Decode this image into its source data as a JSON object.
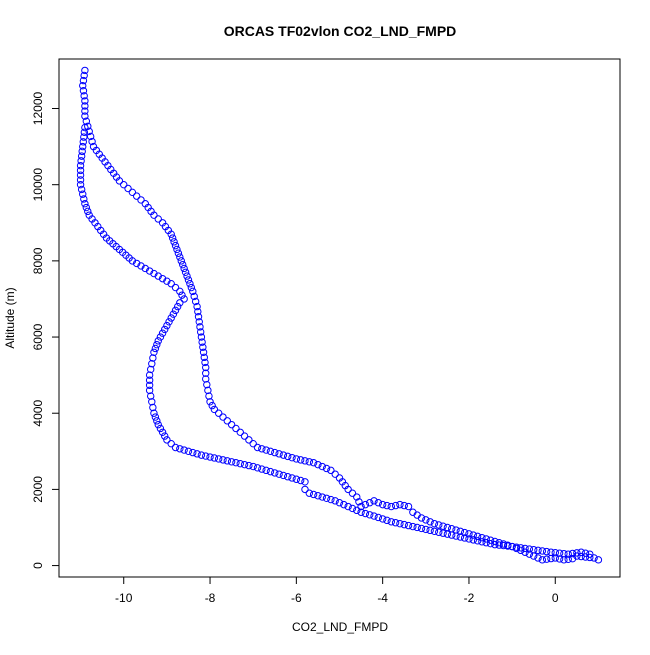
{
  "chart_data": {
    "type": "scatter",
    "title": "ORCAS TF02vlon CO2_LND_FMPD",
    "xlabel": "CO2_LND_FMPD",
    "ylabel": "Altitude (m)",
    "xlim": [
      -11.5,
      1.5
    ],
    "ylim": [
      -300,
      13300
    ],
    "xticks": [
      -10,
      -8,
      -6,
      -4,
      -2,
      0
    ],
    "yticks": [
      0,
      2000,
      4000,
      6000,
      8000,
      10000,
      12000
    ],
    "grid": false,
    "marker": "open-circle",
    "point_color": "#0000ff",
    "series": [
      {
        "name": "",
        "x": [
          1.0,
          0.9,
          0.5,
          0.4,
          0.2,
          0.0,
          -0.3,
          -0.5,
          -0.6,
          -0.8,
          -1.0,
          -1.3,
          -1.6,
          -1.9,
          -2.2,
          -2.5,
          -2.8,
          -3.1,
          -3.3,
          -3.4,
          -3.6,
          -3.8,
          -4.0,
          -4.2,
          -4.4,
          -4.5,
          -4.6,
          -4.8,
          -5.0,
          -5.2,
          -5.4,
          -5.6,
          -5.8,
          -6.0,
          -6.3,
          -6.6,
          -6.9,
          -7.1,
          -7.3,
          -7.5,
          -7.7,
          -7.9,
          -8.0,
          -8.05,
          -8.1,
          -8.1,
          -8.15,
          -8.2,
          -8.25,
          -8.3,
          -8.4,
          -8.5,
          -8.6,
          -8.7,
          -8.8,
          -8.9,
          -9.1,
          -9.3,
          -9.5,
          -9.7,
          -9.9,
          -10.1,
          -10.3,
          -10.5,
          -10.7,
          -10.8,
          -10.9,
          -10.9,
          -10.95,
          -10.9
        ],
        "y": [
          150,
          200,
          250,
          180,
          150,
          200,
          150,
          250,
          300,
          400,
          500,
          600,
          700,
          800,
          900,
          1000,
          1100,
          1250,
          1400,
          1550,
          1600,
          1550,
          1600,
          1700,
          1600,
          1550,
          1800,
          2000,
          2300,
          2500,
          2600,
          2700,
          2750,
          2800,
          2900,
          3000,
          3100,
          3300,
          3500,
          3700,
          3900,
          4100,
          4300,
          4600,
          4900,
          5200,
          5600,
          6000,
          6400,
          6800,
          7200,
          7500,
          7800,
          8100,
          8400,
          8700,
          9000,
          9200,
          9500,
          9700,
          9900,
          10100,
          10400,
          10700,
          11000,
          11400,
          11800,
          12200,
          12600,
          13000
        ]
      },
      {
        "name": "",
        "x": [
          0.8,
          0.6,
          0.3,
          -0.1,
          -0.4,
          -0.7,
          -1.0,
          -1.4,
          -1.8,
          -2.2,
          -2.6,
          -3.0,
          -3.4,
          -3.8,
          -4.2,
          -4.5,
          -4.8,
          -5.1,
          -5.4,
          -5.7,
          -5.8,
          -5.8,
          -6.1,
          -6.4,
          -6.7,
          -7.0,
          -7.4,
          -7.8,
          -8.2,
          -8.5,
          -8.8,
          -9.0,
          -9.1,
          -9.2,
          -9.3,
          -9.35,
          -9.4,
          -9.4,
          -9.35,
          -9.3,
          -9.2,
          -9.1,
          -9.0,
          -8.9,
          -8.8,
          -8.7,
          -8.6,
          -8.7,
          -8.9,
          -9.2,
          -9.5,
          -9.8,
          -10.1,
          -10.4,
          -10.6,
          -10.8,
          -10.9,
          -11.0,
          -11.0,
          -10.95,
          -10.9
        ],
        "y": [
          300,
          350,
          300,
          350,
          400,
          450,
          500,
          550,
          650,
          750,
          850,
          950,
          1050,
          1150,
          1300,
          1400,
          1550,
          1700,
          1800,
          1900,
          2000,
          2200,
          2300,
          2400,
          2500,
          2600,
          2700,
          2800,
          2900,
          3000,
          3100,
          3300,
          3500,
          3700,
          4000,
          4300,
          4600,
          5000,
          5300,
          5600,
          5900,
          6100,
          6300,
          6500,
          6700,
          6900,
          7000,
          7200,
          7400,
          7600,
          7800,
          8000,
          8300,
          8600,
          8900,
          9200,
          9500,
          10000,
          10500,
          11000,
          11500
        ]
      }
    ]
  }
}
